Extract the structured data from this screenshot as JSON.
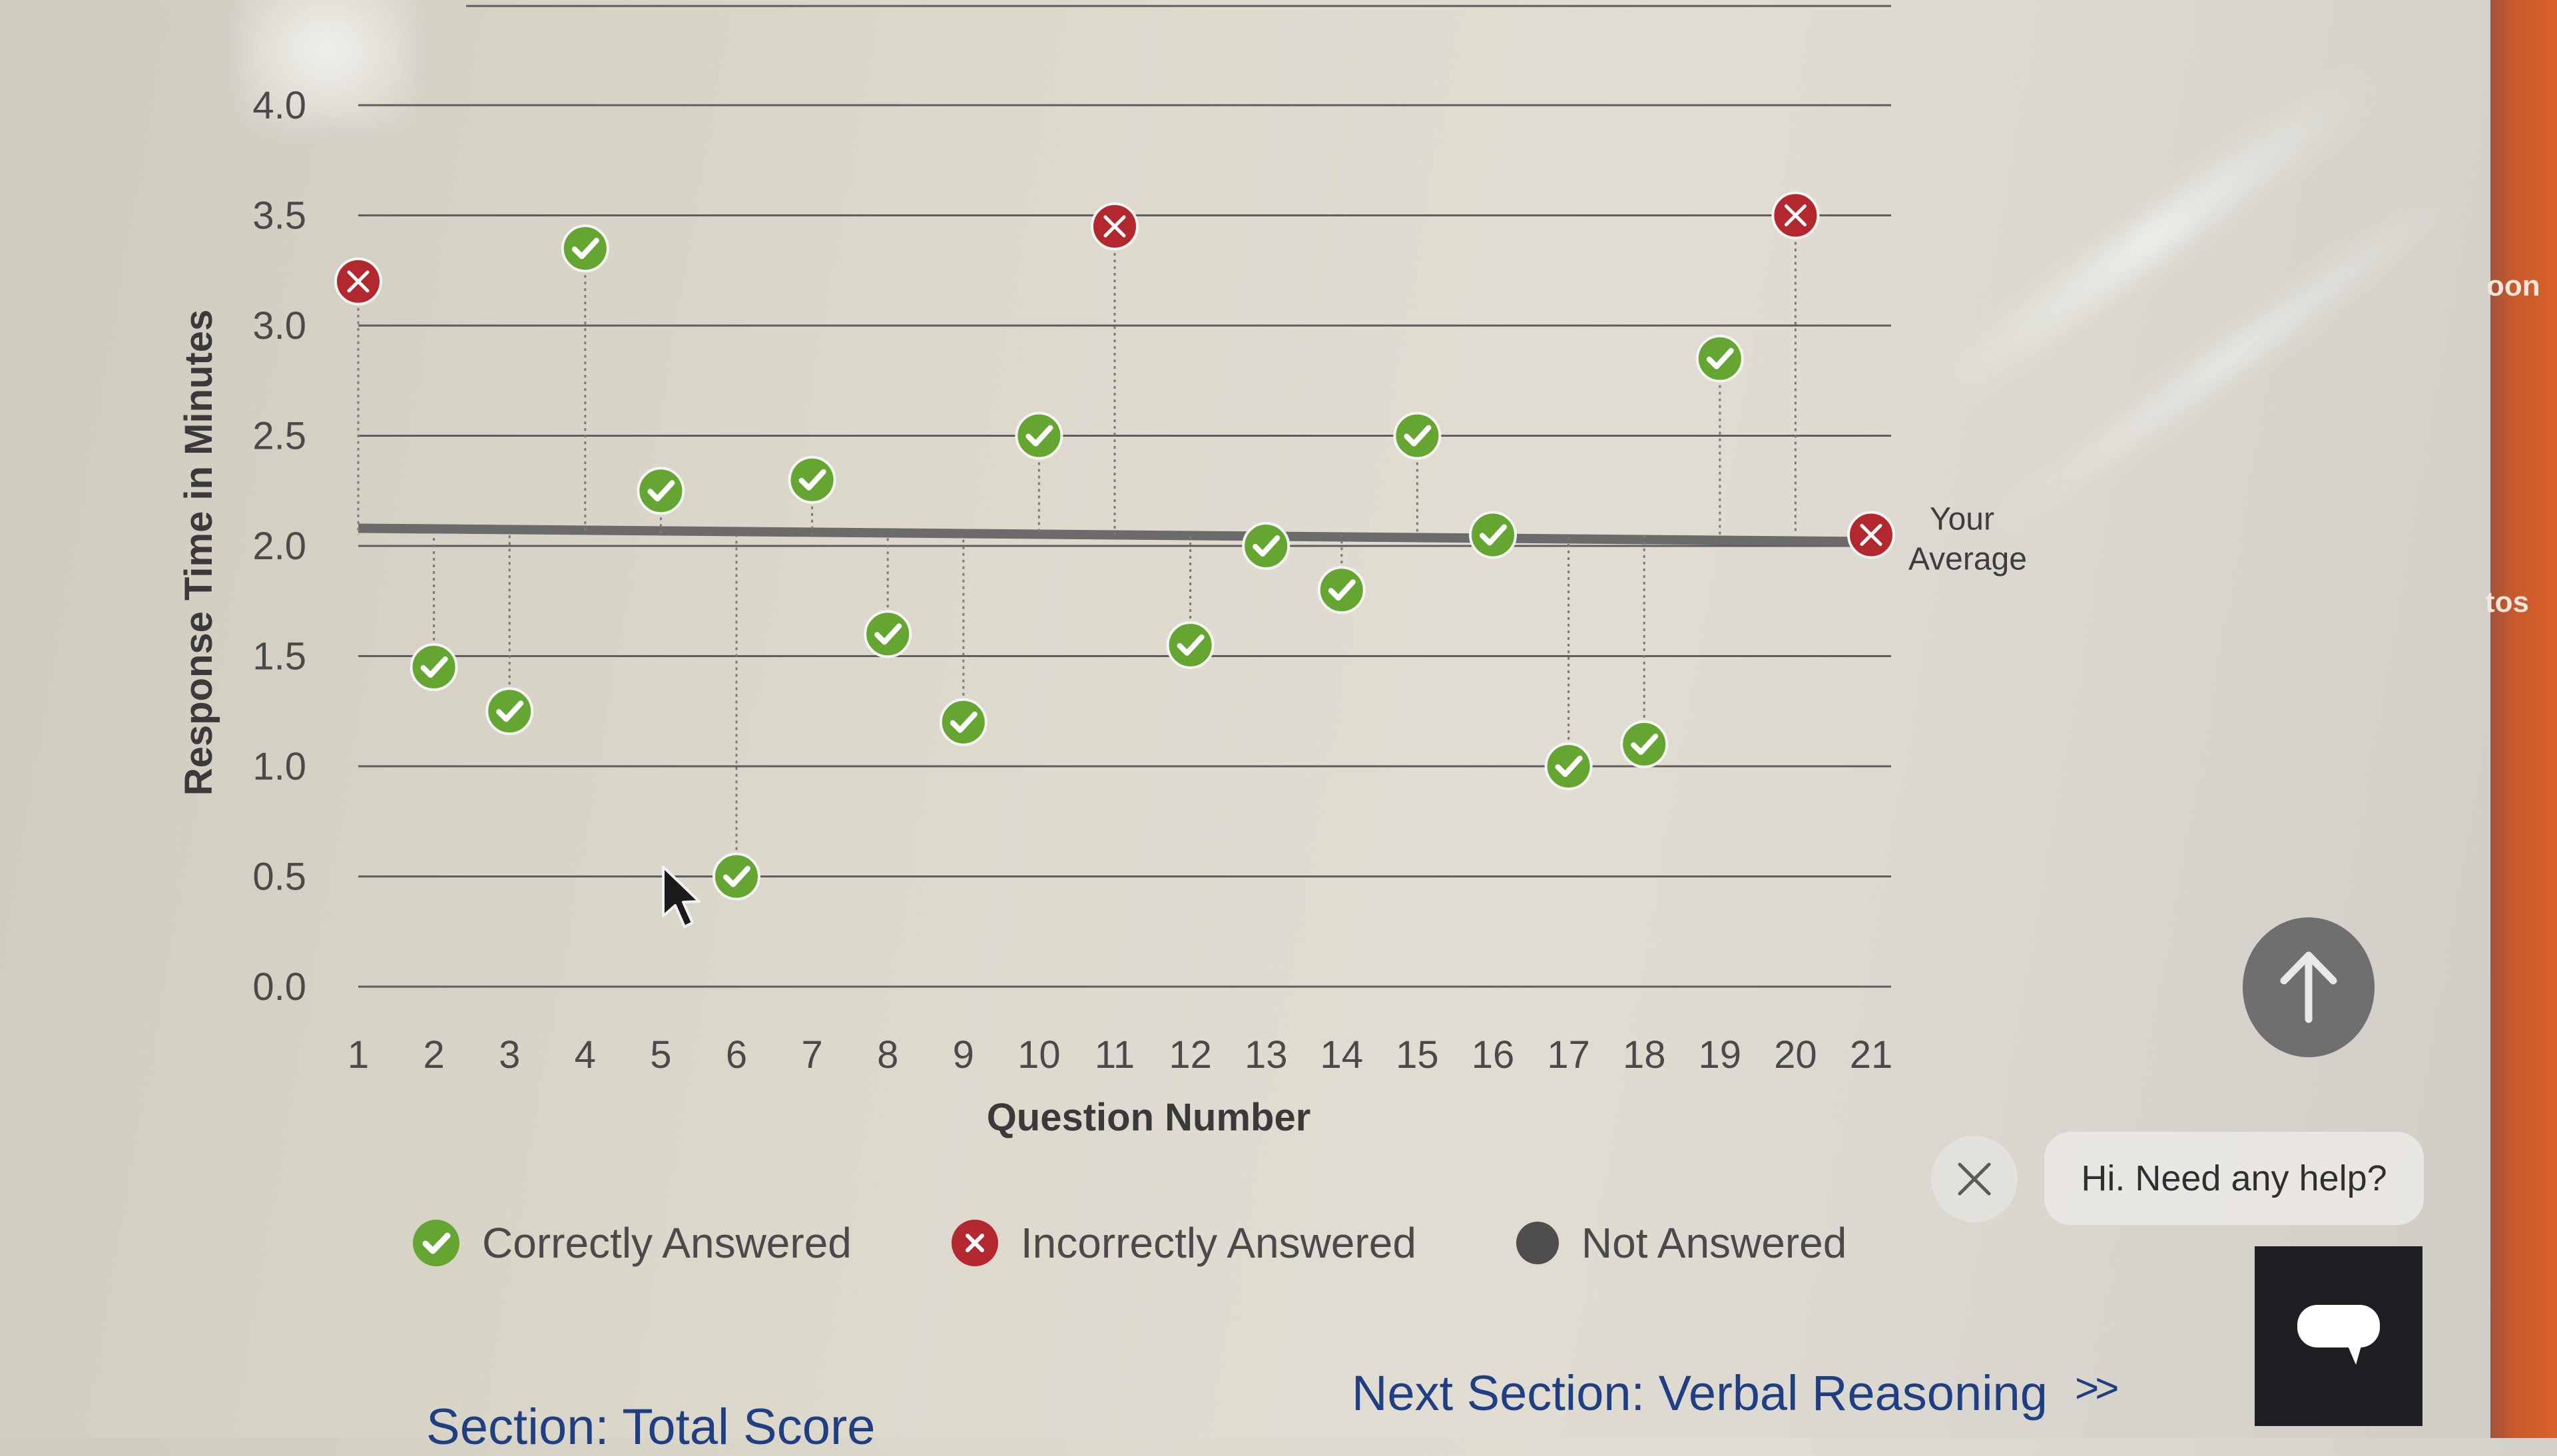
{
  "chart_data": {
    "type": "scatter",
    "xlabel": "Question Number",
    "ylabel": "Response Time in Minutes",
    "categories": [
      "1",
      "2",
      "3",
      "4",
      "5",
      "6",
      "7",
      "8",
      "9",
      "10",
      "11",
      "12",
      "13",
      "14",
      "15",
      "16",
      "17",
      "18",
      "19",
      "20",
      "21"
    ],
    "ylim": [
      0,
      4
    ],
    "yticks": [
      "0.0",
      "0.5",
      "1.0",
      "1.5",
      "2.0",
      "2.5",
      "3.0",
      "3.5",
      "4.0"
    ],
    "average": {
      "value": 2.05,
      "label_line1": "Your",
      "label_line2": "Average"
    },
    "points": [
      {
        "q": 1,
        "value": 3.2,
        "status": "incorrect"
      },
      {
        "q": 2,
        "value": 1.45,
        "status": "correct"
      },
      {
        "q": 3,
        "value": 1.25,
        "status": "correct"
      },
      {
        "q": 4,
        "value": 3.35,
        "status": "correct"
      },
      {
        "q": 5,
        "value": 2.25,
        "status": "correct"
      },
      {
        "q": 6,
        "value": 0.5,
        "status": "correct"
      },
      {
        "q": 7,
        "value": 2.3,
        "status": "correct"
      },
      {
        "q": 8,
        "value": 1.6,
        "status": "correct"
      },
      {
        "q": 9,
        "value": 1.2,
        "status": "correct"
      },
      {
        "q": 10,
        "value": 2.5,
        "status": "correct"
      },
      {
        "q": 11,
        "value": 3.45,
        "status": "incorrect"
      },
      {
        "q": 12,
        "value": 1.55,
        "status": "correct"
      },
      {
        "q": 13,
        "value": 2.0,
        "status": "correct"
      },
      {
        "q": 14,
        "value": 1.8,
        "status": "correct"
      },
      {
        "q": 15,
        "value": 2.5,
        "status": "correct"
      },
      {
        "q": 16,
        "value": 2.05,
        "status": "correct"
      },
      {
        "q": 17,
        "value": 1.0,
        "status": "correct"
      },
      {
        "q": 18,
        "value": 1.1,
        "status": "correct"
      },
      {
        "q": 19,
        "value": 2.85,
        "status": "correct"
      },
      {
        "q": 20,
        "value": 3.5,
        "status": "incorrect"
      },
      {
        "q": 21,
        "value": 2.05,
        "status": "incorrect"
      }
    ],
    "colors": {
      "correct": "#65a632",
      "incorrect": "#b3282e",
      "not_answered": "#4e4e4e",
      "average_line": "#6b6b6b"
    }
  },
  "legend": {
    "correct": "Correctly Answered",
    "incorrect": "Incorrectly Answered",
    "not_answered": "Not Answered"
  },
  "footer": {
    "next_section": "Next Section: Verbal Reasoning",
    "next_chevron": ">>",
    "section_total": "Section: Total Score"
  },
  "help": {
    "message": "Hi. Need any help?"
  },
  "edge_fragments": {
    "top": "oon",
    "middle": "tos"
  },
  "icons": {
    "scroll_top": "arrow-up-icon",
    "close": "close-icon",
    "chat": "chat-icon"
  }
}
